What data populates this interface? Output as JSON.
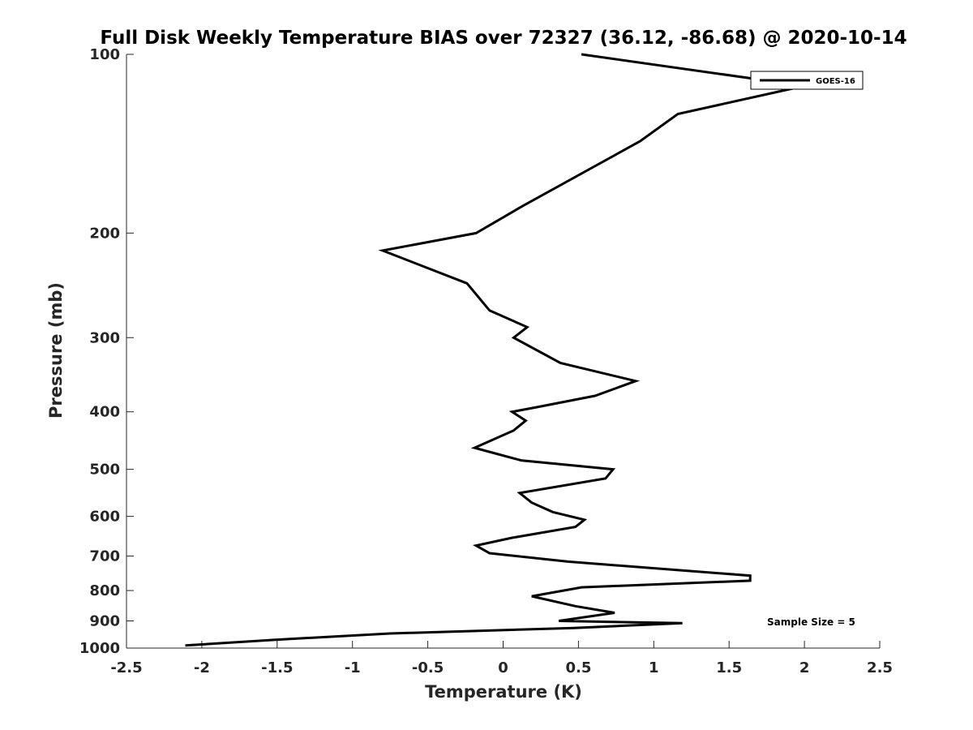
{
  "chart_data": {
    "type": "line",
    "title": "Full Disk Weekly Temperature BIAS over 72327 (36.12, -86.68) @ 2020-10-14",
    "xlabel": "Temperature (K)",
    "ylabel": "Pressure (mb)",
    "xlim": [
      -2.5,
      2.5
    ],
    "ylim": [
      1000,
      100
    ],
    "yscale": "log",
    "y_reversed": true,
    "grid": false,
    "legend_position": "top-right",
    "xticks": [
      -2.5,
      -2,
      -1.5,
      -1,
      -0.5,
      0,
      0.5,
      1,
      1.5,
      2,
      2.5
    ],
    "xtick_labels": [
      "-2.5",
      "-2",
      "-1.5",
      "-1",
      "-0.5",
      "0",
      "0.5",
      "1",
      "1.5",
      "2",
      "2.5"
    ],
    "yticks": [
      100,
      200,
      300,
      400,
      500,
      600,
      700,
      800,
      900,
      1000
    ],
    "ytick_labels": [
      "100",
      "200",
      "300",
      "400",
      "500",
      "600",
      "700",
      "800",
      "900",
      "1000"
    ],
    "series": [
      {
        "name": "GOES-16",
        "color": "#000000",
        "x": [
          0.52,
          2.0,
          1.16,
          0.91,
          0.13,
          -0.18,
          -0.8,
          -0.24,
          -0.09,
          0.16,
          0.07,
          0.38,
          0.88,
          0.61,
          0.22,
          0.06,
          0.15,
          0.07,
          -0.19,
          0.12,
          0.73,
          0.68,
          0.11,
          0.19,
          0.33,
          0.54,
          0.48,
          0.06,
          -0.18,
          -0.09,
          0.43,
          1.64,
          1.64,
          0.52,
          0.19,
          0.48,
          0.74,
          0.37,
          1.19,
          0.47,
          -0.75,
          -1.51,
          -2.11
        ],
        "y": [
          100,
          113,
          126,
          140,
          180,
          200,
          214,
          243,
          270,
          288,
          300,
          331,
          355,
          376,
          393,
          400,
          414,
          430,
          460,
          483,
          500,
          518,
          548,
          569,
          590,
          608,
          625,
          652,
          672,
          692,
          715,
          755,
          770,
          790,
          818,
          850,
          872,
          900,
          908,
          925,
          945,
          968,
          990
        ]
      }
    ],
    "legend": [
      {
        "label": "GOES-16"
      }
    ],
    "annotations": [
      {
        "text": "Sample Size = 5",
        "x": 1.7,
        "y": 908
      }
    ]
  }
}
